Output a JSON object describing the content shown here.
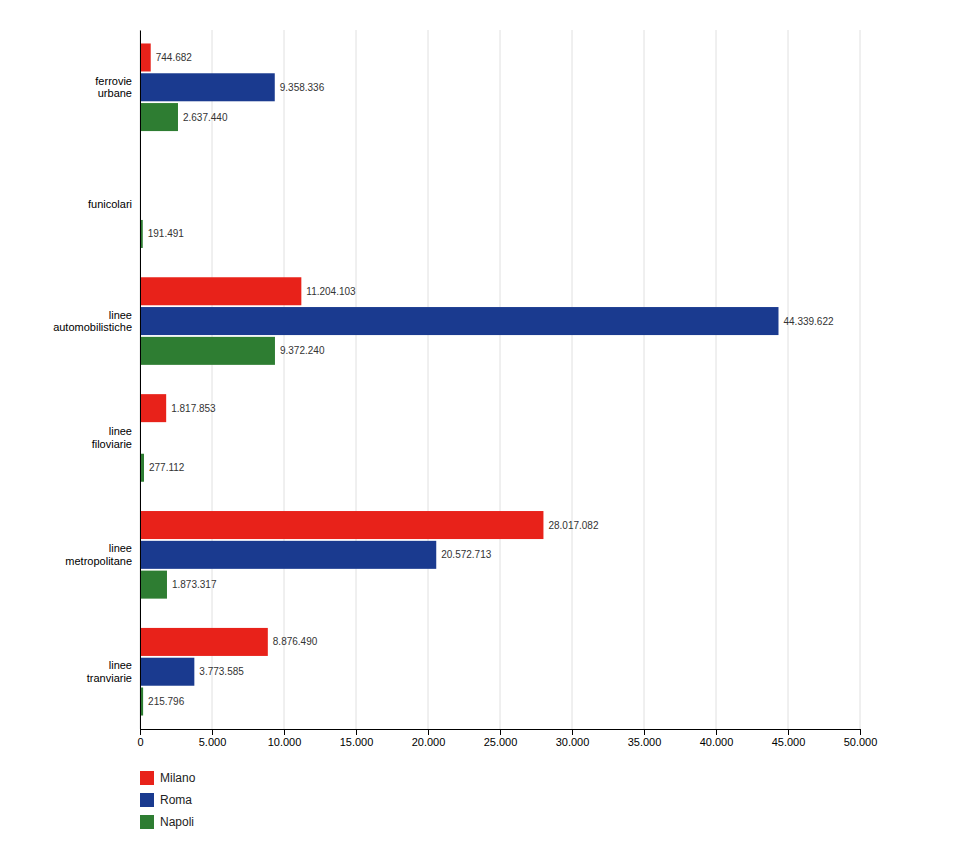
{
  "chart_data": {
    "type": "bar",
    "orientation": "horizontal",
    "categories": [
      "ferrovie\nurbane",
      "funicolari",
      "linee\nautomobilistiche",
      "linee\nfiloviarie",
      "linee\nmetropolitane",
      "linee\ntranviarie"
    ],
    "series": [
      {
        "name": "Milano",
        "color": "#e8221a",
        "values": [
          744.682,
          0,
          11204.103,
          1817.853,
          28017.082,
          8876.49
        ],
        "value_labels": [
          "744.682",
          null,
          "11.204.103",
          "1.817.853",
          "28.017.082",
          "8.876.490"
        ]
      },
      {
        "name": "Roma",
        "color": "#1a3a8f",
        "values": [
          9358.336,
          0,
          44339.622,
          0,
          20572.713,
          3773.585
        ],
        "value_labels": [
          "9.358.336",
          null,
          "44.339.622",
          null,
          "20.572.713",
          "3.773.585"
        ]
      },
      {
        "name": "Napoli",
        "color": "#2e7d32",
        "values": [
          2637.44,
          191.491,
          9372.24,
          277.112,
          1873.317,
          215.796
        ],
        "value_labels": [
          "2.637.440",
          "191.491",
          "9.372.240",
          "277.112",
          "1.873.317",
          "215.796"
        ]
      }
    ],
    "xlim": [
      0,
      50000
    ],
    "xticks": [
      0,
      {
        "value": 5000,
        "label": "5.000"
      },
      {
        "value": 10000,
        "label": "10.000"
      },
      {
        "value": 15000,
        "label": "15.000"
      },
      {
        "value": 20000,
        "label": "20.000"
      },
      {
        "value": 25000,
        "label": "25.000"
      },
      {
        "value": 30000,
        "label": "30.000"
      },
      {
        "value": 35000,
        "label": "35.000"
      },
      {
        "value": 40000,
        "label": "40.000"
      },
      {
        "value": 45000,
        "label": "45.000"
      },
      {
        "value": 50000,
        "label": "50.000"
      }
    ],
    "grid": true,
    "legend": "lower left",
    "data_labels": true
  }
}
